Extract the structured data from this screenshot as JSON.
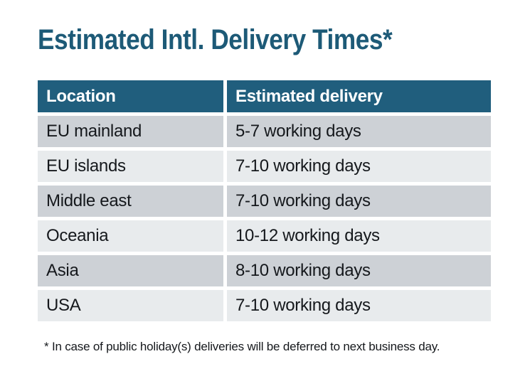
{
  "title": {
    "text": "Estimated Intl. Delivery Times*",
    "color": "#1d5a77"
  },
  "table": {
    "header": {
      "location": "Location",
      "delivery": "Estimated delivery",
      "bg_color": "#205e7d",
      "text_color": "#ffffff"
    },
    "rows": [
      {
        "location": "EU mainland",
        "delivery": "5-7 working days"
      },
      {
        "location": "EU islands",
        "delivery": "7-10 working days"
      },
      {
        "location": "Middle east",
        "delivery": "7-10 working days"
      },
      {
        "location": "Oceania",
        "delivery": "10-12 working days"
      },
      {
        "location": "Asia",
        "delivery": "8-10 working days"
      },
      {
        "location": "USA",
        "delivery": "7-10 working days"
      }
    ],
    "row_colors": {
      "odd": "#cdd1d6",
      "even": "#e8ebed"
    }
  },
  "footnote": {
    "text": "* In case of public holiday(s) deliveries will be deferred to next business day."
  },
  "chart_data": {
    "type": "table",
    "title": "Estimated Intl. Delivery Times*",
    "columns": [
      "Location",
      "Estimated delivery"
    ],
    "rows": [
      [
        "EU mainland",
        "5-7 working days"
      ],
      [
        "EU islands",
        "7-10 working days"
      ],
      [
        "Middle east",
        "7-10 working days"
      ],
      [
        "Oceania",
        "10-12 working days"
      ],
      [
        "Asia",
        "8-10 working days"
      ],
      [
        "USA",
        "7-10 working days"
      ]
    ],
    "footnote": "* In case of public holiday(s) deliveries will be deferred to next business day."
  }
}
